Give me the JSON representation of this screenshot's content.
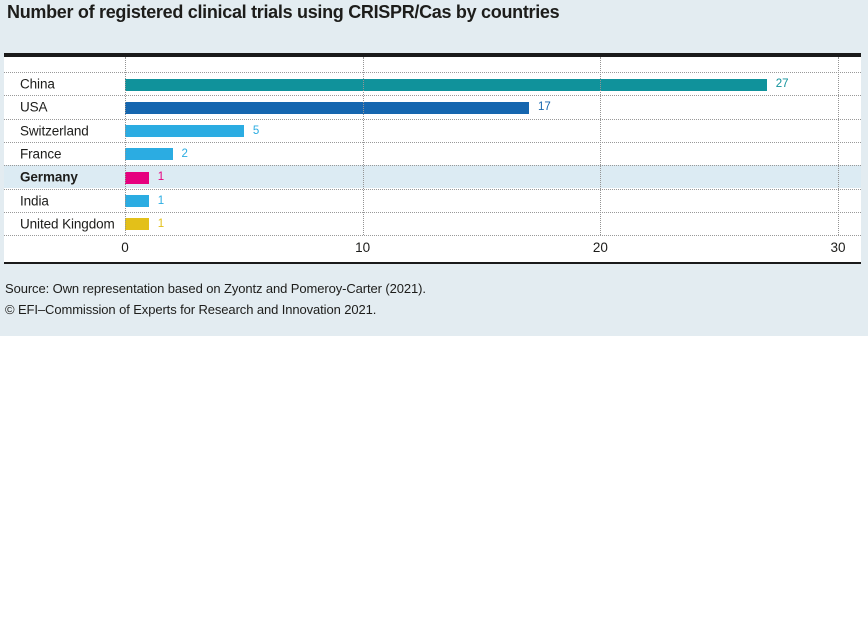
{
  "title": "Number of registered clinical trials using CRISPR/Cas by countries",
  "source": {
    "line1": "Source: Own representation based on Zyontz and Pomeroy-Carter (2021).",
    "line2": "© EFI–Commission of Experts for Research and Innovation 2021."
  },
  "chart_data": {
    "type": "bar",
    "orientation": "horizontal",
    "title": "Number of registered clinical trials using CRISPR/Cas by countries",
    "categories": [
      "China",
      "USA",
      "Switzerland",
      "France",
      "Germany",
      "India",
      "United Kingdom"
    ],
    "values": [
      27,
      17,
      5,
      2,
      1,
      1,
      1
    ],
    "bar_colors": [
      "#10929B",
      "#1566AF",
      "#2BACE2",
      "#2BACE2",
      "#E6007E",
      "#2BACE2",
      "#E3C019"
    ],
    "highlighted_category": "Germany",
    "highlight_row_color": "#DCEBF3",
    "xlim": [
      0,
      30
    ],
    "x_ticks": [
      "0",
      "10",
      "20",
      "30"
    ],
    "grid": "dotted vertical gridlines at each x tick; dotted horizontal separators between rows",
    "value_labels": "value printed right of each bar end, in the bar color",
    "legend": "none",
    "xlabel": "",
    "ylabel": ""
  },
  "colors": {
    "card_background": "#E3ECF1",
    "panel_background": "#FFFFFF",
    "border_black": "#1A1A1A",
    "grid_dotted": "#999999",
    "text": "#1D1D1B"
  }
}
